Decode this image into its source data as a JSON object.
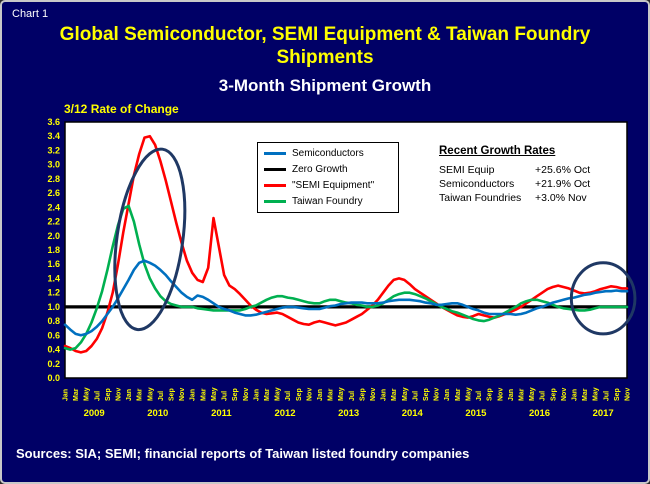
{
  "slide": {
    "chart_label": "Chart 1",
    "title_line1": "Global Semiconductor, SEMI Equipment & Taiwan Foundry",
    "title_line2": "Shipments",
    "subtitle": "3-Month Shipment Growth",
    "axis_note": "3/12 Rate of Change",
    "sources": "Sources: SIA; SEMI; financial reports of Taiwan listed foundry companies",
    "background_color": "#000066",
    "title_color": "#FFFF00"
  },
  "legend": [
    {
      "label": "Semiconductors",
      "color": "#0070C0"
    },
    {
      "label": "Zero Growth",
      "color": "#000000"
    },
    {
      "label": "\"SEMI Equipment\"",
      "color": "#FF0000"
    },
    {
      "label": "Taiwan Foundry",
      "color": "#00B050"
    }
  ],
  "growth_box": {
    "title": "Recent Growth Rates",
    "rows": [
      {
        "label": "SEMI Equip",
        "value": "+25.6% Oct"
      },
      {
        "label": "Semiconductors",
        "value": "+21.9% Oct"
      },
      {
        "label": "Taiwan Foundries",
        "value": "+3.0% Nov"
      }
    ]
  },
  "chart_data": {
    "type": "line",
    "title": "3-Month Shipment Growth",
    "ylabel": "3/12 Rate of Change",
    "ylim": [
      0.0,
      3.6
    ],
    "ytick_step": 0.2,
    "axis_color": "#FFFF00",
    "plot_bg": "#FFFFFF",
    "annotation_color": "#1F3864",
    "x_start": "2009-01",
    "x_end": "2017-11",
    "years": [
      2009,
      2010,
      2011,
      2012,
      2013,
      2014,
      2015,
      2016,
      2017
    ],
    "month_tick_labels": [
      "Jan",
      "Mar",
      "May",
      "Jul",
      "Sep",
      "Nov"
    ],
    "series": [
      {
        "name": "Zero Growth",
        "color": "#000000",
        "constant": 1.0
      },
      {
        "name": "\"SEMI Equipment\"",
        "color": "#FF0000",
        "values": [
          0.45,
          0.42,
          0.38,
          0.36,
          0.38,
          0.45,
          0.55,
          0.7,
          0.92,
          1.2,
          1.6,
          2.05,
          2.45,
          2.85,
          3.15,
          3.38,
          3.4,
          3.28,
          3.05,
          2.78,
          2.48,
          2.18,
          1.9,
          1.65,
          1.48,
          1.38,
          1.35,
          1.55,
          2.25,
          1.85,
          1.45,
          1.3,
          1.25,
          1.18,
          1.1,
          1.02,
          0.96,
          0.92,
          0.9,
          0.91,
          0.92,
          0.9,
          0.86,
          0.82,
          0.78,
          0.76,
          0.75,
          0.78,
          0.8,
          0.78,
          0.76,
          0.74,
          0.76,
          0.78,
          0.82,
          0.86,
          0.9,
          0.96,
          1.02,
          1.1,
          1.2,
          1.3,
          1.38,
          1.4,
          1.38,
          1.32,
          1.25,
          1.2,
          1.15,
          1.1,
          1.05,
          1.0,
          0.96,
          0.92,
          0.88,
          0.86,
          0.85,
          0.87,
          0.9,
          0.88,
          0.86,
          0.85,
          0.87,
          0.9,
          0.93,
          0.96,
          1.0,
          1.05,
          1.1,
          1.15,
          1.2,
          1.25,
          1.28,
          1.3,
          1.28,
          1.26,
          1.23,
          1.2,
          1.19,
          1.2,
          1.22,
          1.25,
          1.27,
          1.29,
          1.28,
          1.26,
          1.26
        ]
      },
      {
        "name": "Taiwan Foundry",
        "color": "#00B050",
        "values": [
          0.42,
          0.4,
          0.42,
          0.5,
          0.62,
          0.78,
          0.98,
          1.22,
          1.52,
          1.85,
          2.15,
          2.38,
          2.42,
          2.2,
          1.88,
          1.6,
          1.4,
          1.26,
          1.15,
          1.08,
          1.04,
          1.02,
          1.0,
          1.0,
          1.0,
          0.98,
          0.97,
          0.96,
          0.95,
          0.95,
          0.95,
          0.95,
          0.95,
          0.95,
          0.97,
          1.0,
          1.02,
          1.06,
          1.1,
          1.13,
          1.15,
          1.15,
          1.13,
          1.12,
          1.1,
          1.08,
          1.06,
          1.05,
          1.05,
          1.08,
          1.1,
          1.1,
          1.08,
          1.06,
          1.05,
          1.03,
          1.02,
          1.0,
          1.0,
          1.02,
          1.05,
          1.1,
          1.15,
          1.18,
          1.2,
          1.2,
          1.18,
          1.15,
          1.12,
          1.08,
          1.04,
          1.0,
          0.97,
          0.94,
          0.92,
          0.89,
          0.86,
          0.83,
          0.81,
          0.8,
          0.82,
          0.85,
          0.88,
          0.92,
          0.96,
          1.0,
          1.05,
          1.08,
          1.1,
          1.1,
          1.08,
          1.06,
          1.03,
          1.0,
          0.98,
          0.97,
          0.96,
          0.95,
          0.95,
          0.96,
          0.98,
          1.0,
          1.0,
          1.0,
          1.0,
          1.0,
          1.0
        ]
      },
      {
        "name": "Semiconductors",
        "color": "#0070C0",
        "values": [
          0.75,
          0.68,
          0.62,
          0.6,
          0.62,
          0.66,
          0.72,
          0.8,
          0.9,
          1.0,
          1.12,
          1.25,
          1.38,
          1.52,
          1.62,
          1.65,
          1.62,
          1.58,
          1.52,
          1.45,
          1.36,
          1.28,
          1.2,
          1.14,
          1.1,
          1.16,
          1.14,
          1.1,
          1.05,
          1.0,
          0.97,
          0.95,
          0.92,
          0.9,
          0.88,
          0.88,
          0.89,
          0.91,
          0.93,
          0.95,
          0.97,
          0.99,
          1.0,
          1.0,
          0.99,
          0.98,
          0.97,
          0.97,
          0.97,
          0.99,
          1.01,
          1.02,
          1.04,
          1.05,
          1.06,
          1.06,
          1.06,
          1.05,
          1.05,
          1.05,
          1.06,
          1.08,
          1.09,
          1.1,
          1.1,
          1.1,
          1.09,
          1.08,
          1.06,
          1.05,
          1.03,
          1.03,
          1.04,
          1.05,
          1.05,
          1.03,
          1.0,
          0.97,
          0.95,
          0.92,
          0.9,
          0.9,
          0.9,
          0.9,
          0.9,
          0.89,
          0.9,
          0.92,
          0.95,
          0.98,
          1.0,
          1.03,
          1.06,
          1.08,
          1.1,
          1.12,
          1.13,
          1.15,
          1.17,
          1.18,
          1.2,
          1.21,
          1.22,
          1.22,
          1.23,
          1.22,
          1.22
        ]
      }
    ],
    "annotations": [
      {
        "shape": "ellipse",
        "x_index": 16,
        "value": 1.95,
        "rx_index": 6.2,
        "ry_value": 1.28,
        "rotate": 8
      },
      {
        "shape": "ellipse",
        "x_index": 101.5,
        "value": 1.12,
        "rx_index": 6.0,
        "ry_value": 0.5,
        "rotate": 0
      }
    ]
  }
}
